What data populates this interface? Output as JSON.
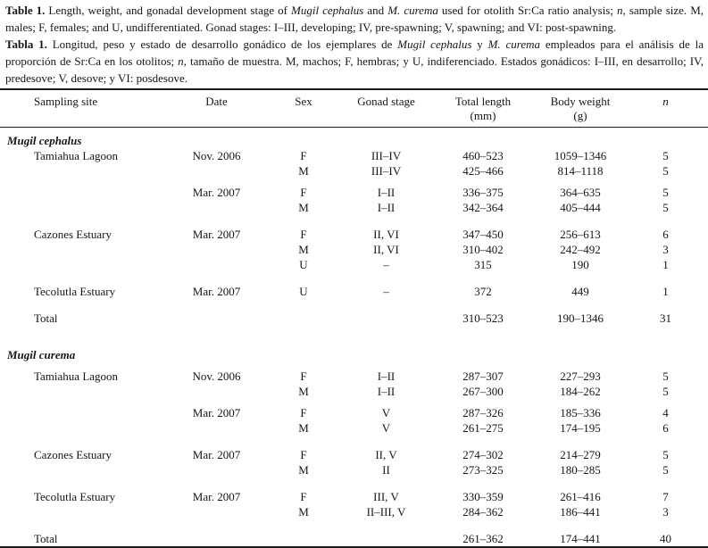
{
  "caption_en": {
    "segments": [
      {
        "t": "Table 1.",
        "b": true
      },
      {
        "t": " Length, weight, and gonadal development stage of "
      },
      {
        "t": "Mugil cephalus",
        "i": true
      },
      {
        "t": " and "
      },
      {
        "t": "M. curema",
        "i": true
      },
      {
        "t": " used for otolith Sr:Ca ratio analysis; "
      },
      {
        "t": "n",
        "i": true
      },
      {
        "t": ", sample size. M, males; F, females; and U, undifferentiated. Gonad stages: I–III, developing; IV, pre-spawning; V, spawning; and VI: post-spawning."
      }
    ]
  },
  "caption_es": {
    "segments": [
      {
        "t": "Tabla 1.",
        "b": true
      },
      {
        "t": " Longitud, peso y estado de desarrollo gonádico de los ejemplares de "
      },
      {
        "t": "Mugil cephalus",
        "i": true
      },
      {
        "t": " y "
      },
      {
        "t": "M. curema",
        "i": true
      },
      {
        "t": " empleados para el análisis de la proporción de Sr:Ca en los otolitos; "
      },
      {
        "t": "n",
        "i": true
      },
      {
        "t": ", tamaño de muestra. M, machos; F, hembras; y U, indiferenciado. Estados gonádicos: I–III, en desarrollo; IV, predesove; V, desove; y VI: posdesove."
      }
    ]
  },
  "table": {
    "columns": [
      {
        "label": "Sampling site",
        "unit": ""
      },
      {
        "label": "Date",
        "unit": ""
      },
      {
        "label": "Sex",
        "unit": ""
      },
      {
        "label": "Gonad stage",
        "unit": ""
      },
      {
        "label": "Total length",
        "unit": "(mm)"
      },
      {
        "label": "Body weight",
        "unit": "(g)"
      },
      {
        "label": "n",
        "unit": ""
      }
    ],
    "rows": [
      {
        "type": "species",
        "gap": "xs",
        "site": "Mugil cephalus",
        "date": "",
        "sex": "",
        "stage": "",
        "length": "",
        "weight": "",
        "n": ""
      },
      {
        "type": "data",
        "gap": "",
        "site": "Tamiahua Lagoon",
        "date": "Nov. 2006",
        "sex": "F",
        "stage": "III–IV",
        "length": "460–523",
        "weight": "1059–1346",
        "n": "5"
      },
      {
        "type": "data",
        "gap": "",
        "site": "",
        "date": "",
        "sex": "M",
        "stage": "III–IV",
        "length": "425–466",
        "weight": "814–1118",
        "n": "5"
      },
      {
        "type": "data",
        "gap": "sm",
        "site": "",
        "date": "Mar. 2007",
        "sex": "F",
        "stage": "I–II",
        "length": "336–375",
        "weight": "364–635",
        "n": "5"
      },
      {
        "type": "data",
        "gap": "",
        "site": "",
        "date": "",
        "sex": "M",
        "stage": "I–II",
        "length": "342–364",
        "weight": "405–444",
        "n": "5"
      },
      {
        "type": "data",
        "gap": "md",
        "site": "Cazones Estuary",
        "date": "Mar. 2007",
        "sex": "F",
        "stage": "II, VI",
        "length": "347–450",
        "weight": "256–613",
        "n": "6"
      },
      {
        "type": "data",
        "gap": "",
        "site": "",
        "date": "",
        "sex": "M",
        "stage": "II, VI",
        "length": "310–402",
        "weight": "242–492",
        "n": "3"
      },
      {
        "type": "data",
        "gap": "",
        "site": "",
        "date": "",
        "sex": "U",
        "stage": "–",
        "length": "315",
        "weight": "190",
        "n": "1"
      },
      {
        "type": "data",
        "gap": "md",
        "site": "Tecolutla Estuary",
        "date": "Mar. 2007",
        "sex": "U",
        "stage": "–",
        "length": "372",
        "weight": "449",
        "n": "1"
      },
      {
        "type": "total",
        "gap": "md",
        "site": "Total",
        "date": "",
        "sex": "",
        "stage": "",
        "length": "310–523",
        "weight": "190–1346",
        "n": "31"
      },
      {
        "type": "species",
        "gap": "lg",
        "site": "Mugil curema",
        "date": "",
        "sex": "",
        "stage": "",
        "length": "",
        "weight": "",
        "n": ""
      },
      {
        "type": "data",
        "gap": "sm",
        "site": "Tamiahua Lagoon",
        "date": "Nov. 2006",
        "sex": "F",
        "stage": "I–II",
        "length": "287–307",
        "weight": "227–293",
        "n": "5"
      },
      {
        "type": "data",
        "gap": "",
        "site": "",
        "date": "",
        "sex": "M",
        "stage": "I–II",
        "length": "267–300",
        "weight": "184–262",
        "n": "5"
      },
      {
        "type": "data",
        "gap": "sm",
        "site": "",
        "date": "Mar. 2007",
        "sex": "F",
        "stage": "V",
        "length": "287–326",
        "weight": "185–336",
        "n": "4"
      },
      {
        "type": "data",
        "gap": "",
        "site": "",
        "date": "",
        "sex": "M",
        "stage": "V",
        "length": "261–275",
        "weight": "174–195",
        "n": "6"
      },
      {
        "type": "data",
        "gap": "md",
        "site": "Cazones Estuary",
        "date": "Mar. 2007",
        "sex": "F",
        "stage": "II, V",
        "length": "274–302",
        "weight": "214–279",
        "n": "5"
      },
      {
        "type": "data",
        "gap": "",
        "site": "",
        "date": "",
        "sex": "M",
        "stage": "II",
        "length": "273–325",
        "weight": "180–285",
        "n": "5"
      },
      {
        "type": "data",
        "gap": "md",
        "site": "Tecolutla Estuary",
        "date": "Mar. 2007",
        "sex": "F",
        "stage": "III, V",
        "length": "330–359",
        "weight": "261–416",
        "n": "7"
      },
      {
        "type": "data",
        "gap": "",
        "site": "",
        "date": "",
        "sex": "M",
        "stage": "II–III, V",
        "length": "284–362",
        "weight": "186–441",
        "n": "3"
      },
      {
        "type": "total",
        "gap": "md",
        "site": "Total",
        "date": "",
        "sex": "",
        "stage": "",
        "length": "261–362",
        "weight": "174–441",
        "n": "40"
      }
    ]
  }
}
